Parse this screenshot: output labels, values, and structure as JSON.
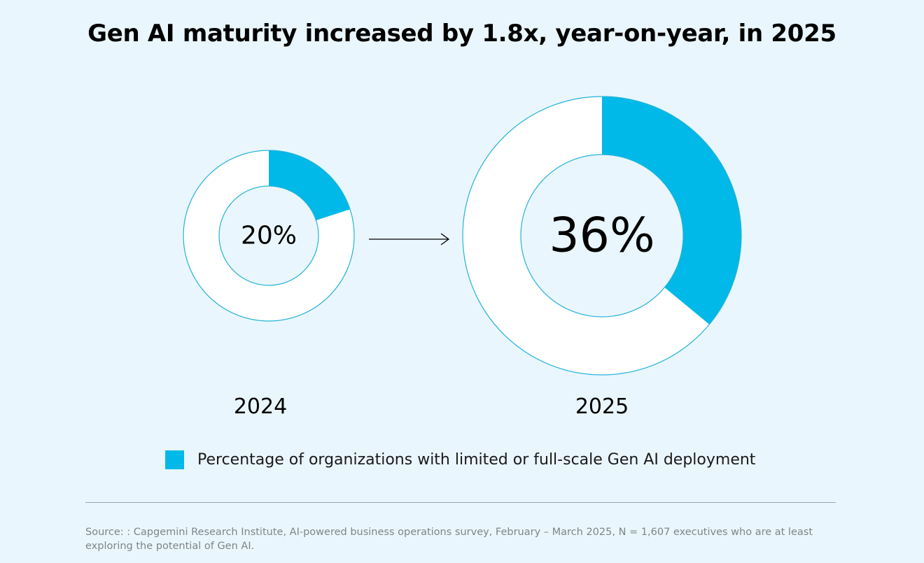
{
  "title": "Gen AI maturity increased by 1.8x, year-on-year, in 2025",
  "chart_data": {
    "type": "pie",
    "subtype": "donut",
    "title": "Gen AI maturity increased by 1.8x, year-on-year, in 2025",
    "series_name": "Percentage of organizations with limited or full-scale Gen AI deployment",
    "items": [
      {
        "year": "2024",
        "value": 20,
        "label": "20%"
      },
      {
        "year": "2025",
        "value": 36,
        "label": "36%"
      }
    ]
  },
  "legend": {
    "label": "Percentage of organizations with limited or full-scale Gen AI deployment"
  },
  "colors": {
    "accent": "#00b9e8",
    "background": "#eaf6fd",
    "ring_fill": "#ffffff",
    "outline": "#23b3d8",
    "divider": "#9aa3a8",
    "source_text": "#7d858b"
  },
  "source": "Source: : Capgemini Research Institute, AI-powered business operations survey, February – March 2025, N = 1,607 executives who are at least exploring the potential of Gen AI."
}
